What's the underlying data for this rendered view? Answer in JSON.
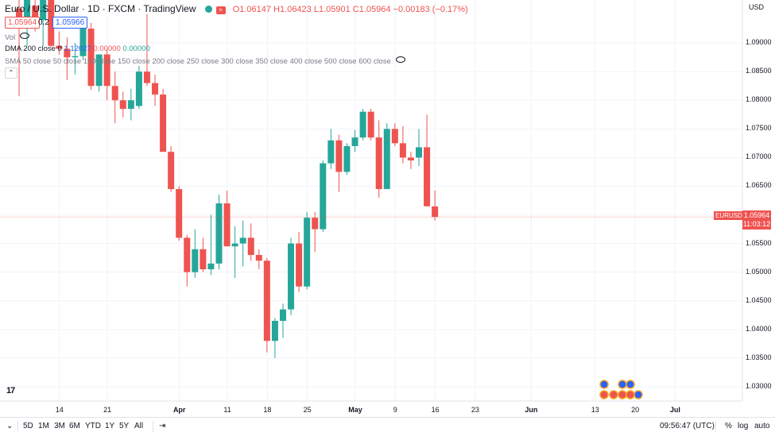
{
  "header": {
    "symbol": "Euro / U.S. Dollar · 1D · FXCM · TradingView",
    "ohlc": "O1.06147 H1.06423 L1.05901 C1.05964 −0.00183 (−0.17%)",
    "sell_price": "1.05964",
    "spread": "0.2",
    "buy_price": "1.05966"
  },
  "indicators": {
    "vol": "Vol",
    "dma_name": "DMA 200 close 0",
    "dma_v1": "1.12027",
    "dma_v2": "0.00000",
    "dma_v3": "0.00000",
    "sma": "SMA 50 close 50 close 100 close 150 close 200 close 250 close 300 close 350 close 400 close 500 close 600 close"
  },
  "currency": "USD",
  "y_labels": [
    "1.09000",
    "1.08500",
    "1.08000",
    "1.07500",
    "1.07000",
    "1.06500",
    "1.06000",
    "1.05500",
    "1.05000",
    "1.04500",
    "1.04000",
    "1.03500",
    "1.03000"
  ],
  "x_labels": [
    "14",
    "21",
    "Apr",
    "11",
    "18",
    "25",
    "May",
    "9",
    "16",
    "23",
    "Jun",
    "13",
    "20",
    "Jul"
  ],
  "last_price": {
    "symbol": "EURUSD",
    "price": "1.05964",
    "countdown": "11:03:12"
  },
  "toolbar": {
    "ranges": [
      "5D",
      "1M",
      "3M",
      "6M",
      "YTD",
      "1Y",
      "5Y",
      "All"
    ],
    "time": "09:56:47 (UTC)",
    "percent": "%",
    "log": "log",
    "auto": "auto"
  },
  "colors": {
    "up": "#26a69a",
    "down": "#ef5350",
    "accent": "#2962ff"
  },
  "chart_data": {
    "type": "candlestick",
    "title": "Euro / U.S. Dollar · 1D · FXCM",
    "ylim": [
      1.0275,
      1.0975
    ],
    "last_close": 1.05964,
    "candles": [
      {
        "o": 1.096,
        "h": 1.0985,
        "l": 1.0807,
        "c": 1.093
      },
      {
        "o": 1.0928,
        "h": 1.099,
        "l": 1.0895,
        "c": 1.0975
      },
      {
        "o": 1.0965,
        "h": 1.0985,
        "l": 1.092,
        "c": 1.0935
      },
      {
        "o": 1.094,
        "h": 1.0985,
        "l": 1.0895,
        "c": 1.0975
      },
      {
        "o": 1.0975,
        "h": 1.099,
        "l": 1.0893,
        "c": 1.0895
      },
      {
        "o": 1.0895,
        "h": 1.092,
        "l": 1.088,
        "c": 1.089
      },
      {
        "o": 1.089,
        "h": 1.091,
        "l": 1.0835,
        "c": 1.0875
      },
      {
        "o": 1.0875,
        "h": 1.09,
        "l": 1.0845,
        "c": 1.0877
      },
      {
        "o": 1.0877,
        "h": 1.094,
        "l": 1.087,
        "c": 1.0925
      },
      {
        "o": 1.0925,
        "h": 1.0935,
        "l": 1.0818,
        "c": 1.0825
      },
      {
        "o": 1.0825,
        "h": 1.088,
        "l": 1.0815,
        "c": 1.088
      },
      {
        "o": 1.088,
        "h": 1.089,
        "l": 1.08,
        "c": 1.0825
      },
      {
        "o": 1.0825,
        "h": 1.085,
        "l": 1.076,
        "c": 1.08
      },
      {
        "o": 1.08,
        "h": 1.0815,
        "l": 1.077,
        "c": 1.0785
      },
      {
        "o": 1.0785,
        "h": 1.082,
        "l": 1.0765,
        "c": 1.08
      },
      {
        "o": 1.079,
        "h": 1.086,
        "l": 1.0785,
        "c": 1.085
      },
      {
        "o": 1.085,
        "h": 1.095,
        "l": 1.0825,
        "c": 1.083
      },
      {
        "o": 1.083,
        "h": 1.0845,
        "l": 1.079,
        "c": 1.081
      },
      {
        "o": 1.081,
        "h": 1.082,
        "l": 1.071,
        "c": 1.071
      },
      {
        "o": 1.071,
        "h": 1.072,
        "l": 1.064,
        "c": 1.0645
      },
      {
        "o": 1.0645,
        "h": 1.065,
        "l": 1.0555,
        "c": 1.056
      },
      {
        "o": 1.056,
        "h": 1.0565,
        "l": 1.0475,
        "c": 1.05
      },
      {
        "o": 1.05,
        "h": 1.0575,
        "l": 1.049,
        "c": 1.054
      },
      {
        "o": 1.054,
        "h": 1.056,
        "l": 1.05,
        "c": 1.0505
      },
      {
        "o": 1.0505,
        "h": 1.06,
        "l": 1.0495,
        "c": 1.0515
      },
      {
        "o": 1.0515,
        "h": 1.0635,
        "l": 1.0505,
        "c": 1.062
      },
      {
        "o": 1.062,
        "h": 1.0642,
        "l": 1.0545,
        "c": 1.0545
      },
      {
        "o": 1.0545,
        "h": 1.058,
        "l": 1.049,
        "c": 1.055
      },
      {
        "o": 1.055,
        "h": 1.059,
        "l": 1.051,
        "c": 1.056
      },
      {
        "o": 1.056,
        "h": 1.0585,
        "l": 1.052,
        "c": 1.053
      },
      {
        "o": 1.053,
        "h": 1.054,
        "l": 1.0505,
        "c": 1.052
      },
      {
        "o": 1.052,
        "h": 1.0525,
        "l": 1.036,
        "c": 1.038
      },
      {
        "o": 1.038,
        "h": 1.042,
        "l": 1.035,
        "c": 1.0415
      },
      {
        "o": 1.0415,
        "h": 1.0445,
        "l": 1.0385,
        "c": 1.0435
      },
      {
        "o": 1.0435,
        "h": 1.056,
        "l": 1.0425,
        "c": 1.055
      },
      {
        "o": 1.055,
        "h": 1.057,
        "l": 1.0465,
        "c": 1.0475
      },
      {
        "o": 1.0475,
        "h": 1.0605,
        "l": 1.047,
        "c": 1.0595
      },
      {
        "o": 1.0595,
        "h": 1.0605,
        "l": 1.0535,
        "c": 1.0575
      },
      {
        "o": 1.0575,
        "h": 1.0695,
        "l": 1.057,
        "c": 1.069
      },
      {
        "o": 1.069,
        "h": 1.075,
        "l": 1.068,
        "c": 1.073
      },
      {
        "o": 1.073,
        "h": 1.074,
        "l": 1.064,
        "c": 1.0675
      },
      {
        "o": 1.0675,
        "h": 1.0725,
        "l": 1.067,
        "c": 1.072
      },
      {
        "o": 1.072,
        "h": 1.0748,
        "l": 1.071,
        "c": 1.0735
      },
      {
        "o": 1.0735,
        "h": 1.0785,
        "l": 1.073,
        "c": 1.078
      },
      {
        "o": 1.078,
        "h": 1.0785,
        "l": 1.073,
        "c": 1.0735
      },
      {
        "o": 1.0735,
        "h": 1.0765,
        "l": 1.063,
        "c": 1.0645
      },
      {
        "o": 1.0645,
        "h": 1.076,
        "l": 1.0645,
        "c": 1.075
      },
      {
        "o": 1.075,
        "h": 1.076,
        "l": 1.072,
        "c": 1.0725
      },
      {
        "o": 1.0725,
        "h": 1.0755,
        "l": 1.069,
        "c": 1.07
      },
      {
        "o": 1.07,
        "h": 1.071,
        "l": 1.068,
        "c": 1.0695
      },
      {
        "o": 1.07,
        "h": 1.075,
        "l": 1.0685,
        "c": 1.0718
      },
      {
        "o": 1.0718,
        "h": 1.0775,
        "l": 1.0615,
        "c": 1.0615
      },
      {
        "o": 1.06147,
        "h": 1.06423,
        "l": 1.05901,
        "c": 1.05964
      }
    ]
  }
}
